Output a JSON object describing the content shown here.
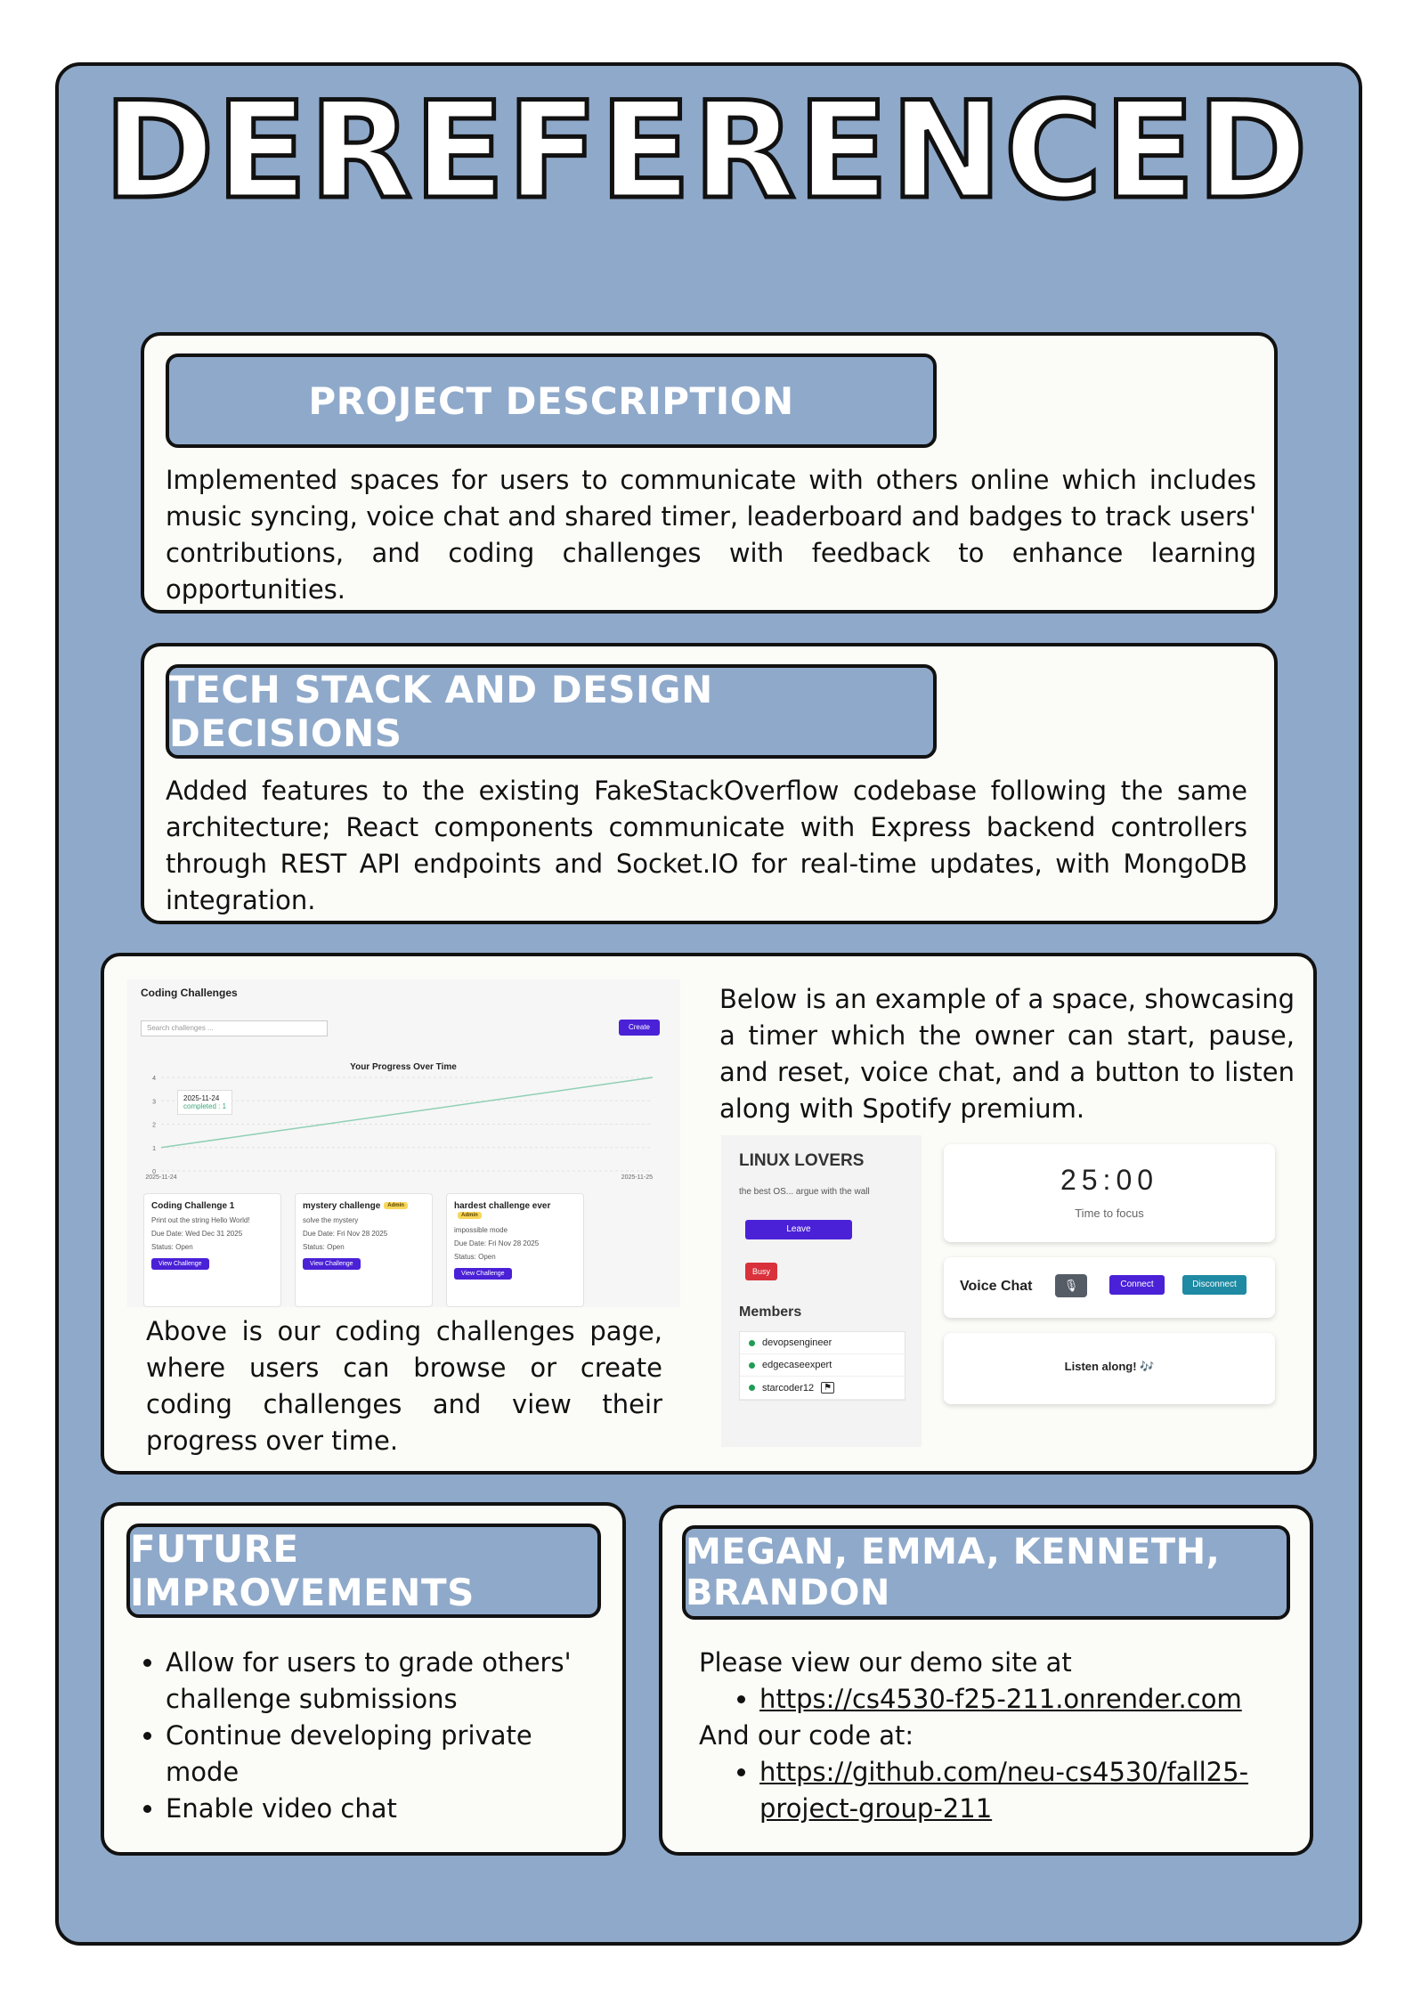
{
  "title": "DEREFERENCED",
  "project_description": {
    "heading": "PROJECT DESCRIPTION",
    "text": "Implemented spaces for users to communicate with others online which includes music syncing, voice chat and shared timer, leaderboard and badges to track users' contributions, and coding challenges with feedback to enhance learning opportunities."
  },
  "tech_stack": {
    "heading": "TECH STACK AND DESIGN DECISIONS",
    "text": "Added features to the existing FakeStackOverflow codebase following the same architecture; React components communicate with Express backend controllers through REST API endpoints and Socket.IO for real-time updates, with MongoDB integration."
  },
  "screenshots": {
    "challenges_caption": "Above is our coding challenges page, where users can browse or create coding challenges and view their progress over time.",
    "space_caption": "Below is an example of a space, showcasing a timer which the owner can start, pause, and reset, voice chat, and a button to listen along with Spotify premium.",
    "challenges_page": {
      "title": "Coding Challenges",
      "search_placeholder": "Search challenges ...",
      "create_label": "Create",
      "chart_title": "Your Progress Over Time",
      "tooltip_date": "2025-11-24",
      "tooltip_value": "completed : 1",
      "cards": [
        {
          "title": "Coding Challenge 1",
          "desc": "Print out the string Hello World!",
          "due": "Due Date: Wed Dec 31 2025",
          "status": "Status: Open",
          "button": "View Challenge",
          "admin": ""
        },
        {
          "title": "mystery challenge",
          "desc": "solve the mystery",
          "due": "Due Date: Fri Nov 28 2025",
          "status": "Status: Open",
          "button": "View Challenge",
          "admin": "Admin"
        },
        {
          "title": "hardest challenge ever",
          "desc": "impossible mode",
          "due": "Due Date: Fri Nov 28 2025",
          "status": "Status: Open",
          "button": "View Challenge",
          "admin": "Admin"
        }
      ]
    },
    "space_page": {
      "name": "LINUX LOVERS",
      "description": "the best OS... argue with the wall",
      "leave_label": "Leave",
      "busy_label": "Busy",
      "members_heading": "Members",
      "members": [
        "devopsengineer",
        "edgecaseexpert",
        "starcoder12"
      ],
      "timer": "25:00",
      "timer_caption": "Time to focus",
      "voice_chat_label": "Voice Chat",
      "connect_label": "Connect",
      "disconnect_label": "Disconnect",
      "listen_label": "Listen along! 🎶"
    }
  },
  "chart_data": {
    "type": "line",
    "title": "Your Progress Over Time",
    "x": [
      "2025-11-24",
      "2025-11-25"
    ],
    "series": [
      {
        "name": "completed",
        "values": [
          1,
          4
        ]
      }
    ],
    "ylim": [
      0,
      4
    ],
    "yticks": [
      "0",
      "1",
      "2",
      "3",
      "4"
    ],
    "xticks": [
      "2025-11-24",
      "2025-11-25"
    ],
    "grid": true
  },
  "future_improvements": {
    "heading": "FUTURE IMPROVEMENTS",
    "items": [
      "Allow for users to grade others' challenge submissions",
      "Continue developing private mode",
      "Enable video chat"
    ]
  },
  "team": {
    "heading": "MEGAN, EMMA, KENNETH, BRANDON",
    "demo_intro": "Please view our demo site at",
    "demo_url": "https://cs4530-f25-211.onrender.com",
    "code_intro": "And our code at:",
    "code_url": "https://github.com/neu-cs4530/fall25-project-group-211"
  },
  "colors": {
    "background": "#8fa9ca",
    "card": "#fbfbf7",
    "accent_purple": "#4a21d6",
    "teal": "#1f8aa3",
    "busy_red": "#d9323c"
  }
}
